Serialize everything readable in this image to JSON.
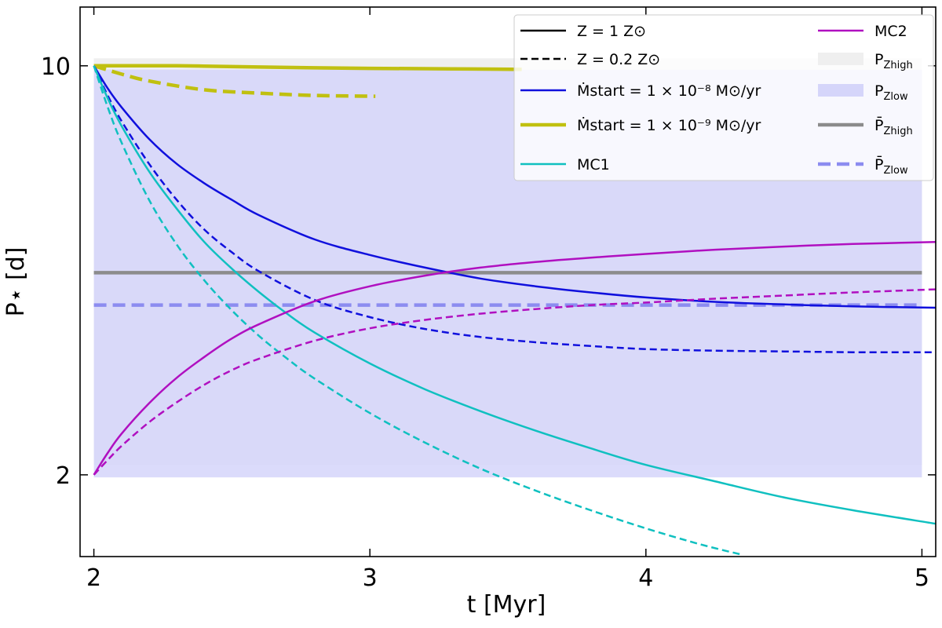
{
  "chart_data": {
    "type": "line",
    "title": "",
    "xlabel": "t [Myr]",
    "ylabel": "P⋆ [d]",
    "xlim": [
      1.95,
      5.05
    ],
    "ylim": [
      1.45,
      12.6
    ],
    "yscale": "log",
    "xticks": [
      2,
      3,
      4,
      5
    ],
    "xtick_labels": [
      "2",
      "3",
      "4",
      "5"
    ],
    "yticks": [
      2,
      10
    ],
    "ytick_labels": [
      "2",
      "10"
    ],
    "bands": [
      {
        "name": "P_Zhigh",
        "y0": 2.08,
        "y1": 10.3,
        "x0": 2.0,
        "x1": 5.0,
        "color": "#efefef"
      },
      {
        "name": "P_Zlow",
        "y0": 1.98,
        "y1": 9.85,
        "x0": 2.0,
        "x1": 5.0,
        "color": "#d5d5fa"
      }
    ],
    "hlines": [
      {
        "name": "mean P_Zhigh",
        "y": 4.43,
        "color": "#8c8c8c",
        "dash": false,
        "width": 4.5
      },
      {
        "name": "mean P_Zlow",
        "y": 3.9,
        "color": "#8c8cf0",
        "dash": true,
        "width": 4.5
      }
    ],
    "series": [
      {
        "name": "Mdot 1e-9, Z=1",
        "color": "#c0c010",
        "dash": false,
        "width": 4.5,
        "x": [
          2.0,
          2.3,
          2.6,
          3.0,
          3.3,
          3.55
        ],
        "y": [
          10.0,
          10.0,
          9.95,
          9.9,
          9.88,
          9.86
        ]
      },
      {
        "name": "Mdot 1e-9, Z=0.2",
        "color": "#c0c010",
        "dash": true,
        "width": 4.5,
        "x": [
          2.0,
          2.1,
          2.2,
          2.4,
          2.6,
          2.8,
          3.02
        ],
        "y": [
          10.0,
          9.68,
          9.42,
          9.1,
          8.98,
          8.9,
          8.87
        ]
      },
      {
        "name": "Mdot 1e-8, Z=1",
        "color": "#1010dd",
        "dash": false,
        "width": 2.5,
        "x": [
          2.0,
          2.05,
          2.1,
          2.2,
          2.3,
          2.4,
          2.5,
          2.6,
          2.8,
          3.0,
          3.2,
          3.4,
          3.6,
          3.8,
          4.0,
          4.25,
          4.5,
          4.75,
          5.05
        ],
        "y": [
          10.0,
          9.15,
          8.5,
          7.5,
          6.8,
          6.3,
          5.9,
          5.55,
          5.05,
          4.75,
          4.52,
          4.33,
          4.2,
          4.1,
          4.02,
          3.95,
          3.91,
          3.88,
          3.86
        ]
      },
      {
        "name": "Mdot 1e-8, Z=0.2",
        "color": "#1010dd",
        "dash": true,
        "width": 2.5,
        "x": [
          2.0,
          2.05,
          2.1,
          2.2,
          2.3,
          2.4,
          2.5,
          2.6,
          2.8,
          3.0,
          3.2,
          3.4,
          3.6,
          3.8,
          4.0,
          4.25,
          4.5,
          4.75,
          5.05
        ],
        "y": [
          10.0,
          8.9,
          8.05,
          6.8,
          5.9,
          5.25,
          4.8,
          4.45,
          3.98,
          3.72,
          3.55,
          3.44,
          3.37,
          3.32,
          3.28,
          3.26,
          3.25,
          3.24,
          3.24
        ]
      },
      {
        "name": "MC1, Z=1",
        "color": "#10c0c0",
        "dash": false,
        "width": 2.5,
        "x": [
          2.0,
          2.05,
          2.1,
          2.2,
          2.3,
          2.4,
          2.5,
          2.6,
          2.7,
          2.8,
          3.0,
          3.2,
          3.4,
          3.6,
          3.8,
          4.0,
          4.25,
          4.5,
          4.75,
          5.05
        ],
        "y": [
          10.0,
          8.8,
          7.9,
          6.6,
          5.7,
          5.0,
          4.5,
          4.1,
          3.77,
          3.5,
          3.1,
          2.8,
          2.57,
          2.38,
          2.22,
          2.08,
          1.95,
          1.83,
          1.74,
          1.65
        ]
      },
      {
        "name": "MC1, Z=0.2",
        "color": "#10c0c0",
        "dash": true,
        "width": 2.5,
        "x": [
          2.0,
          2.05,
          2.1,
          2.2,
          2.3,
          2.4,
          2.5,
          2.6,
          2.7,
          2.8,
          3.0,
          3.2,
          3.4,
          3.6,
          3.8,
          4.0,
          4.2,
          4.35
        ],
        "y": [
          10.0,
          8.5,
          7.4,
          5.9,
          4.95,
          4.3,
          3.82,
          3.45,
          3.16,
          2.92,
          2.55,
          2.27,
          2.05,
          1.88,
          1.74,
          1.62,
          1.52,
          1.46
        ]
      },
      {
        "name": "MC2, Z=1",
        "color": "#b010c0",
        "dash": false,
        "width": 2.5,
        "x": [
          2.0,
          2.05,
          2.1,
          2.2,
          2.3,
          2.4,
          2.5,
          2.6,
          2.8,
          3.0,
          3.2,
          3.4,
          3.6,
          3.8,
          4.0,
          4.25,
          4.5,
          4.75,
          5.05
        ],
        "y": [
          2.0,
          2.18,
          2.35,
          2.65,
          2.93,
          3.18,
          3.42,
          3.62,
          3.96,
          4.2,
          4.38,
          4.52,
          4.62,
          4.7,
          4.77,
          4.85,
          4.91,
          4.96,
          5.0
        ]
      },
      {
        "name": "MC2, Z=0.2",
        "color": "#b010c0",
        "dash": true,
        "width": 2.5,
        "x": [
          2.0,
          2.05,
          2.1,
          2.2,
          2.3,
          2.4,
          2.5,
          2.6,
          2.8,
          3.0,
          3.2,
          3.4,
          3.6,
          3.8,
          4.0,
          4.25,
          4.5,
          4.75,
          5.05
        ],
        "y": [
          2.0,
          2.12,
          2.24,
          2.46,
          2.66,
          2.85,
          3.02,
          3.16,
          3.39,
          3.56,
          3.68,
          3.77,
          3.84,
          3.9,
          3.94,
          4.0,
          4.05,
          4.1,
          4.15
        ]
      }
    ],
    "legend": {
      "location": "top-right",
      "entries": [
        {
          "kind": "line",
          "color": "#000000",
          "dash": false,
          "label": "Z = 1 Z⊙"
        },
        {
          "kind": "line",
          "color": "#000000",
          "dash": true,
          "label": "Z = 0.2 Z⊙"
        },
        {
          "kind": "line",
          "color": "#1010dd",
          "dash": false,
          "label": "Ṁstart = 1 × 10⁻⁸ M⊙/yr"
        },
        {
          "kind": "line",
          "color": "#c0c010",
          "dash": false,
          "thick": true,
          "label": "Ṁstart = 1 × 10⁻⁹ M⊙/yr"
        },
        {
          "kind": "line",
          "color": "#10c0c0",
          "dash": false,
          "label": "MC1"
        },
        {
          "kind": "line",
          "color": "#b010c0",
          "dash": false,
          "label": "MC2"
        },
        {
          "kind": "patch",
          "color": "#efefef",
          "label": "P",
          "sub": "Zhigh"
        },
        {
          "kind": "patch",
          "color": "#d5d5fa",
          "label": "P",
          "sub": "Zlow"
        },
        {
          "kind": "line",
          "color": "#8c8c8c",
          "dash": false,
          "thick": true,
          "label": "P̄",
          "sub": "Zhigh"
        },
        {
          "kind": "line",
          "color": "#8c8cf0",
          "dash": true,
          "thick": true,
          "label": "P̄",
          "sub": "Zlow"
        }
      ]
    }
  }
}
